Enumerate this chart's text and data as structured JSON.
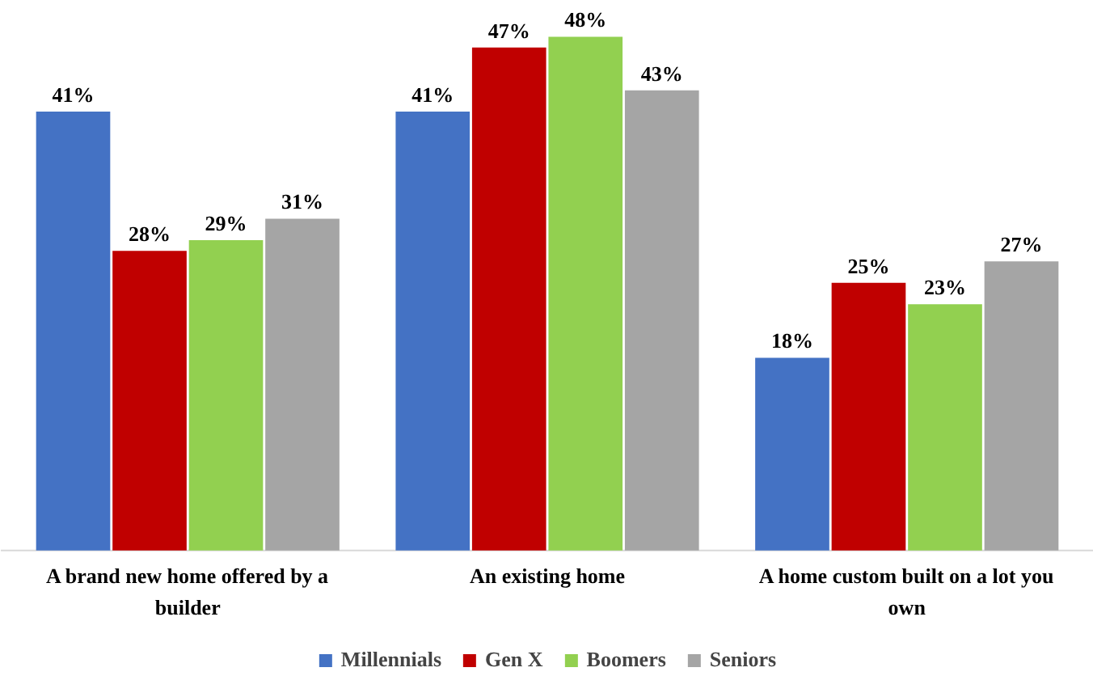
{
  "chart_data": {
    "type": "bar",
    "categories": [
      "A brand new home offered by a builder",
      "An existing home",
      "A home custom built on a lot you own"
    ],
    "series": [
      {
        "name": "Millennials",
        "color": "#4472c4",
        "values": [
          41,
          41,
          18
        ],
        "value_labels": [
          "41%",
          "41%",
          "18%"
        ]
      },
      {
        "name": "Gen X",
        "color": "#c00000",
        "values": [
          28,
          47,
          25
        ],
        "value_labels": [
          "28%",
          "47%",
          "25%"
        ]
      },
      {
        "name": "Boomers",
        "color": "#92d050",
        "values": [
          29,
          48,
          23
        ],
        "value_labels": [
          "29%",
          "48%",
          "23%"
        ]
      },
      {
        "name": "Seniors",
        "color": "#a5a5a5",
        "values": [
          31,
          43,
          27
        ],
        "value_labels": [
          "31%",
          "43%",
          "27%"
        ]
      }
    ],
    "legend": "bottom"
  }
}
